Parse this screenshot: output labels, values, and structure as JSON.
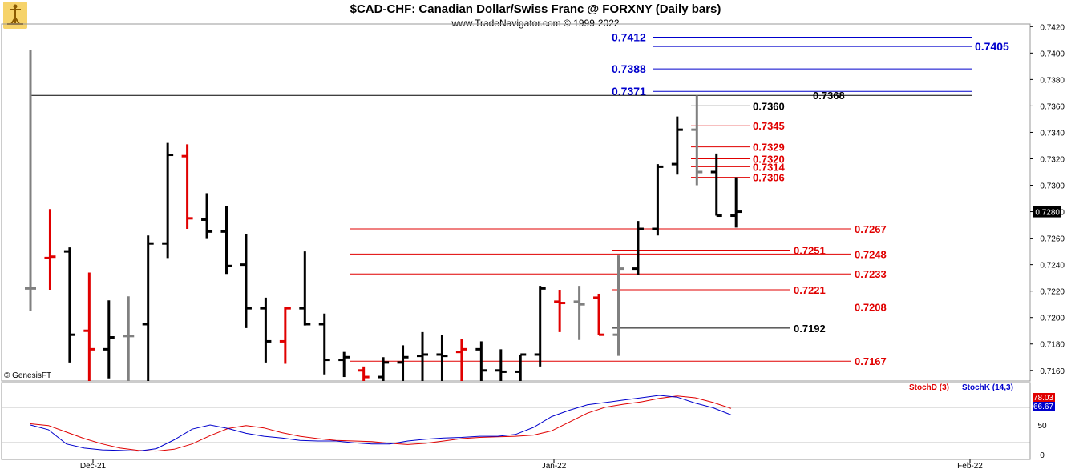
{
  "header": {
    "title": "$CAD-CHF:  Canadian Dollar/Swiss Franc @ FORXNY  (Daily bars)",
    "subtitle": "www.TradeNavigator.com © 1999-2022",
    "copyright": "© GenesisFT"
  },
  "colors": {
    "up_bar": "#000000",
    "down_bar": "#e00000",
    "neutral_bar": "#808080",
    "level_blue": "#0000cc",
    "level_red": "#e00000",
    "level_black": "#000000",
    "stoch_d": "#e00000",
    "stoch_k": "#0000cc"
  },
  "chart_data": [
    {
      "type": "ohlc",
      "name": "price",
      "y_axis_ticks": [
        "0.7420",
        "0.7400",
        "0.7380",
        "0.7360",
        "0.7340",
        "0.7320",
        "0.7300",
        "0.7280",
        "0.7260",
        "0.7240",
        "0.7220",
        "0.7200",
        "0.7180",
        "0.7160"
      ],
      "ylim": [
        0.7152,
        0.7422
      ],
      "last_price_label": "0.7280",
      "x_axis_labels": [
        "Dec-21",
        "Jan-22",
        "Feb-22"
      ],
      "bars": [
        {
          "o": 0.7222,
          "h": 0.7402,
          "l": 0.7205,
          "c": 0.7222,
          "color": "neutral"
        },
        {
          "o": 0.7245,
          "h": 0.7282,
          "l": 0.7221,
          "c": 0.7246,
          "color": "down"
        },
        {
          "o": 0.725,
          "h": 0.7253,
          "l": 0.7166,
          "c": 0.7187,
          "color": "up"
        },
        {
          "o": 0.719,
          "h": 0.7234,
          "l": 0.7152,
          "c": 0.7176,
          "color": "down"
        },
        {
          "o": 0.7176,
          "h": 0.7213,
          "l": 0.7154,
          "c": 0.7185,
          "color": "up"
        },
        {
          "o": 0.7186,
          "h": 0.7216,
          "l": 0.7152,
          "c": 0.7186,
          "color": "neutral"
        },
        {
          "o": 0.7195,
          "h": 0.7262,
          "l": 0.7152,
          "c": 0.7256,
          "color": "up"
        },
        {
          "o": 0.7256,
          "h": 0.7332,
          "l": 0.7245,
          "c": 0.7323,
          "color": "up"
        },
        {
          "o": 0.7322,
          "h": 0.7331,
          "l": 0.7267,
          "c": 0.7275,
          "color": "down"
        },
        {
          "o": 0.7274,
          "h": 0.7294,
          "l": 0.726,
          "c": 0.7265,
          "color": "up"
        },
        {
          "o": 0.7265,
          "h": 0.7284,
          "l": 0.7233,
          "c": 0.7239,
          "color": "up"
        },
        {
          "o": 0.724,
          "h": 0.7263,
          "l": 0.7192,
          "c": 0.7207,
          "color": "up"
        },
        {
          "o": 0.7207,
          "h": 0.7215,
          "l": 0.7166,
          "c": 0.7182,
          "color": "up"
        },
        {
          "o": 0.7182,
          "h": 0.7208,
          "l": 0.7165,
          "c": 0.7207,
          "color": "down"
        },
        {
          "o": 0.7207,
          "h": 0.725,
          "l": 0.7194,
          "c": 0.7195,
          "color": "up"
        },
        {
          "o": 0.7195,
          "h": 0.7203,
          "l": 0.7157,
          "c": 0.7168,
          "color": "up"
        },
        {
          "o": 0.7168,
          "h": 0.7174,
          "l": 0.7155,
          "c": 0.717,
          "color": "up"
        },
        {
          "o": 0.716,
          "h": 0.7163,
          "l": 0.7152,
          "c": 0.7155,
          "color": "down"
        },
        {
          "o": 0.7155,
          "h": 0.717,
          "l": 0.7152,
          "c": 0.7166,
          "color": "up"
        },
        {
          "o": 0.7166,
          "h": 0.7179,
          "l": 0.7152,
          "c": 0.717,
          "color": "up"
        },
        {
          "o": 0.7171,
          "h": 0.7189,
          "l": 0.7152,
          "c": 0.7172,
          "color": "up"
        },
        {
          "o": 0.7172,
          "h": 0.7187,
          "l": 0.7152,
          "c": 0.7171,
          "color": "up"
        },
        {
          "o": 0.7174,
          "h": 0.7184,
          "l": 0.7152,
          "c": 0.7176,
          "color": "down"
        },
        {
          "o": 0.7176,
          "h": 0.7182,
          "l": 0.7152,
          "c": 0.716,
          "color": "up"
        },
        {
          "o": 0.716,
          "h": 0.7176,
          "l": 0.7152,
          "c": 0.7159,
          "color": "up"
        },
        {
          "o": 0.7159,
          "h": 0.7172,
          "l": 0.7152,
          "c": 0.7172,
          "color": "up"
        },
        {
          "o": 0.7172,
          "h": 0.7224,
          "l": 0.7163,
          "c": 0.7222,
          "color": "up"
        },
        {
          "o": 0.7212,
          "h": 0.7221,
          "l": 0.7189,
          "c": 0.7211,
          "color": "down"
        },
        {
          "o": 0.7212,
          "h": 0.7224,
          "l": 0.7183,
          "c": 0.721,
          "color": "neutral"
        },
        {
          "o": 0.7215,
          "h": 0.7218,
          "l": 0.7187,
          "c": 0.7187,
          "color": "down"
        },
        {
          "o": 0.7187,
          "h": 0.7247,
          "l": 0.7171,
          "c": 0.7237,
          "color": "neutral"
        },
        {
          "o": 0.7237,
          "h": 0.7273,
          "l": 0.7232,
          "c": 0.7267,
          "color": "up"
        },
        {
          "o": 0.7267,
          "h": 0.7316,
          "l": 0.7262,
          "c": 0.7314,
          "color": "up"
        },
        {
          "o": 0.7316,
          "h": 0.7352,
          "l": 0.7308,
          "c": 0.7342,
          "color": "up"
        },
        {
          "o": 0.7342,
          "h": 0.7368,
          "l": 0.73,
          "c": 0.731,
          "color": "neutral"
        },
        {
          "o": 0.731,
          "h": 0.7324,
          "l": 0.7277,
          "c": 0.7277,
          "color": "up"
        },
        {
          "o": 0.7277,
          "h": 0.7306,
          "l": 0.7268,
          "c": 0.728,
          "color": "up"
        }
      ],
      "levels": [
        {
          "value": 0.7412,
          "label": "0.7412",
          "color": "blue",
          "label_side": "left",
          "x_start_bar": 34
        },
        {
          "value": 0.7405,
          "label": "0.7405",
          "color": "blue",
          "label_side": "right",
          "x_start_bar": 34
        },
        {
          "value": 0.7388,
          "label": "0.7388",
          "color": "blue",
          "label_side": "left",
          "x_start_bar": 34
        },
        {
          "value": 0.7371,
          "label": "0.7371",
          "color": "blue",
          "label_side": "left",
          "x_start_bar": 34
        },
        {
          "value": 0.7368,
          "label": "0.7368",
          "color": "black",
          "label_side": "full",
          "x_start_bar": 0
        },
        {
          "value": 0.736,
          "label": "0.7360",
          "color": "black",
          "label_side": "short",
          "x_start_bar": 34
        },
        {
          "value": 0.7345,
          "label": "0.7345",
          "color": "red",
          "label_side": "short",
          "x_start_bar": 34
        },
        {
          "value": 0.7329,
          "label": "0.7329",
          "color": "red",
          "label_side": "short",
          "x_start_bar": 34
        },
        {
          "value": 0.732,
          "label": "0.7320",
          "color": "red",
          "label_side": "short",
          "x_start_bar": 34
        },
        {
          "value": 0.7314,
          "label": "0.7314",
          "color": "red",
          "label_side": "short",
          "x_start_bar": 34
        },
        {
          "value": 0.7306,
          "label": "0.7306",
          "color": "red",
          "label_side": "short",
          "x_start_bar": 34
        },
        {
          "value": 0.7267,
          "label": "0.7267",
          "color": "red",
          "label_side": "long",
          "x_start_bar": 16
        },
        {
          "value": 0.7251,
          "label": "0.7251",
          "color": "red",
          "label_side": "mid",
          "x_start_bar": 30
        },
        {
          "value": 0.7248,
          "label": "0.7248",
          "color": "red",
          "label_side": "long",
          "x_start_bar": 16
        },
        {
          "value": 0.7233,
          "label": "0.7233",
          "color": "red",
          "label_side": "long",
          "x_start_bar": 16
        },
        {
          "value": 0.7221,
          "label": "0.7221",
          "color": "red",
          "label_side": "mid",
          "x_start_bar": 30
        },
        {
          "value": 0.7208,
          "label": "0.7208",
          "color": "red",
          "label_side": "long",
          "x_start_bar": 16
        },
        {
          "value": 0.7192,
          "label": "0.7192",
          "color": "black",
          "label_side": "mid",
          "x_start_bar": 30
        },
        {
          "value": 0.7167,
          "label": "0.7167",
          "color": "red",
          "label_side": "long",
          "x_start_bar": 16
        }
      ]
    },
    {
      "type": "line",
      "name": "stochastic",
      "legend": [
        "StochD (3)",
        "StochK (14,3)"
      ],
      "y_axis_ticks": [
        "100",
        "50",
        "0"
      ],
      "ylim": [
        0,
        100
      ],
      "last_values": {
        "d": "78.03",
        "k": "66.67"
      },
      "series": [
        {
          "name": "StochD (3)",
          "values": [
            52,
            49,
            38,
            27,
            18,
            11,
            7,
            6,
            9,
            18,
            32,
            44,
            49,
            45,
            37,
            31,
            27,
            24,
            23,
            22,
            19,
            17,
            19,
            23,
            27,
            29,
            30,
            31,
            33,
            40,
            55,
            70,
            80,
            85,
            89,
            95,
            99,
            96,
            88,
            78
          ]
        },
        {
          "name": "StochK (14,3)",
          "values": [
            50,
            42,
            18,
            11,
            8,
            7,
            6,
            10,
            25,
            43,
            50,
            44,
            36,
            31,
            28,
            24,
            23,
            23,
            20,
            18,
            18,
            23,
            26,
            28,
            29,
            31,
            31,
            34,
            46,
            64,
            75,
            84,
            88,
            92,
            96,
            100,
            97,
            87,
            79,
            67
          ]
        }
      ]
    }
  ]
}
